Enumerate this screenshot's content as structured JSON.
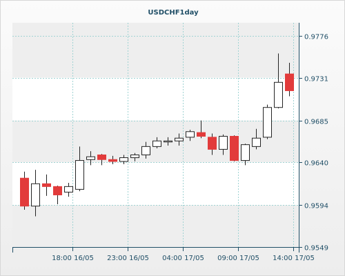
{
  "chart_data": {
    "type": "candlestick",
    "title": "USDCHF1day",
    "xlabel": "",
    "ylabel": "",
    "ylim": [
      0.9549,
      0.979
    ],
    "grid": true,
    "y_ticks": [
      "0.9549",
      "0.9594",
      "0.9640",
      "0.9685",
      "0.9731",
      "0.9776"
    ],
    "x_ticks": [
      {
        "label": "18:00 16/05",
        "index": 4
      },
      {
        "label": "23:00 16/05",
        "index": 9
      },
      {
        "label": "04:00 17/05",
        "index": 14
      },
      {
        "label": "09:00 17/05",
        "index": 19
      },
      {
        "label": "14:00 17/05",
        "index": 24
      }
    ],
    "up_color": "#ffffff",
    "down_color": "#e23b3b",
    "candles": [
      {
        "open": 0.9623,
        "high": 0.963,
        "low": 0.9589,
        "close": 0.9593
      },
      {
        "open": 0.9593,
        "high": 0.9632,
        "low": 0.9582,
        "close": 0.9617
      },
      {
        "open": 0.9617,
        "high": 0.9627,
        "low": 0.9604,
        "close": 0.9614
      },
      {
        "open": 0.9614,
        "high": 0.9615,
        "low": 0.9595,
        "close": 0.9605
      },
      {
        "open": 0.9608,
        "high": 0.9618,
        "low": 0.9603,
        "close": 0.9614
      },
      {
        "open": 0.9611,
        "high": 0.9657,
        "low": 0.9609,
        "close": 0.9642
      },
      {
        "open": 0.9643,
        "high": 0.9652,
        "low": 0.9637,
        "close": 0.9646
      },
      {
        "open": 0.9648,
        "high": 0.9649,
        "low": 0.9637,
        "close": 0.9643
      },
      {
        "open": 0.9643,
        "high": 0.9647,
        "low": 0.9638,
        "close": 0.9641
      },
      {
        "open": 0.9641,
        "high": 0.9648,
        "low": 0.9638,
        "close": 0.9645
      },
      {
        "open": 0.9645,
        "high": 0.965,
        "low": 0.9641,
        "close": 0.9648
      },
      {
        "open": 0.9648,
        "high": 0.9662,
        "low": 0.9644,
        "close": 0.9657
      },
      {
        "open": 0.9657,
        "high": 0.9667,
        "low": 0.9655,
        "close": 0.9663
      },
      {
        "open": 0.9662,
        "high": 0.9667,
        "low": 0.9658,
        "close": 0.9663
      },
      {
        "open": 0.9663,
        "high": 0.9671,
        "low": 0.9658,
        "close": 0.9666
      },
      {
        "open": 0.9667,
        "high": 0.9675,
        "low": 0.9663,
        "close": 0.9673
      },
      {
        "open": 0.9672,
        "high": 0.9685,
        "low": 0.9666,
        "close": 0.9668
      },
      {
        "open": 0.9667,
        "high": 0.9671,
        "low": 0.9648,
        "close": 0.9654
      },
      {
        "open": 0.9654,
        "high": 0.967,
        "low": 0.9648,
        "close": 0.9668
      },
      {
        "open": 0.9668,
        "high": 0.9669,
        "low": 0.9641,
        "close": 0.9642
      },
      {
        "open": 0.9642,
        "high": 0.966,
        "low": 0.9637,
        "close": 0.9659
      },
      {
        "open": 0.9657,
        "high": 0.9676,
        "low": 0.9654,
        "close": 0.9666
      },
      {
        "open": 0.9667,
        "high": 0.9702,
        "low": 0.9665,
        "close": 0.9699
      },
      {
        "open": 0.9699,
        "high": 0.9757,
        "low": 0.9698,
        "close": 0.9726
      },
      {
        "open": 0.9735,
        "high": 0.9747,
        "low": 0.9711,
        "close": 0.9717
      }
    ]
  }
}
